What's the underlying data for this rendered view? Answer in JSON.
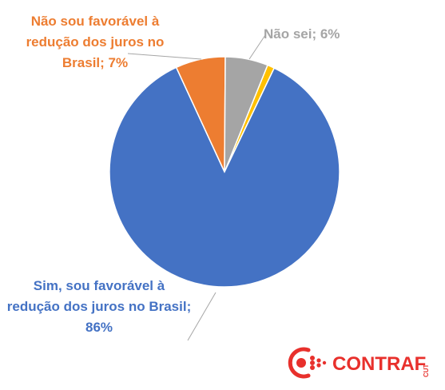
{
  "chart_data": {
    "type": "pie",
    "slices": [
      {
        "label": "Sim, sou favorável à redução dos juros no Brasil",
        "value": 86,
        "color": "#4472C4"
      },
      {
        "label": "Não sou favorável à redução dos juros no Brasil",
        "value": 7,
        "color": "#ED7D31"
      },
      {
        "label": "Não sei",
        "value": 6,
        "color": "#A5A5A5"
      },
      {
        "label": "",
        "value": 1,
        "color": "#FFC000"
      }
    ],
    "data_labels": {
      "nao_favoravel": [
        "Não sou favorável à",
        "redução dos juros no",
        "Brasil; 7%"
      ],
      "nao_sei": "Não sei; 6%",
      "sim": [
        "Sim, sou favorável à",
        "redução dos juros no Brasil;",
        "86%"
      ]
    },
    "label_colors": {
      "nao_favoravel": "#ED7D31",
      "nao_sei": "#A5A5A5",
      "sim": "#4472C4"
    }
  },
  "logo": {
    "text": "CONTRAF",
    "subtext": "CUT",
    "color": "#E8302C"
  }
}
